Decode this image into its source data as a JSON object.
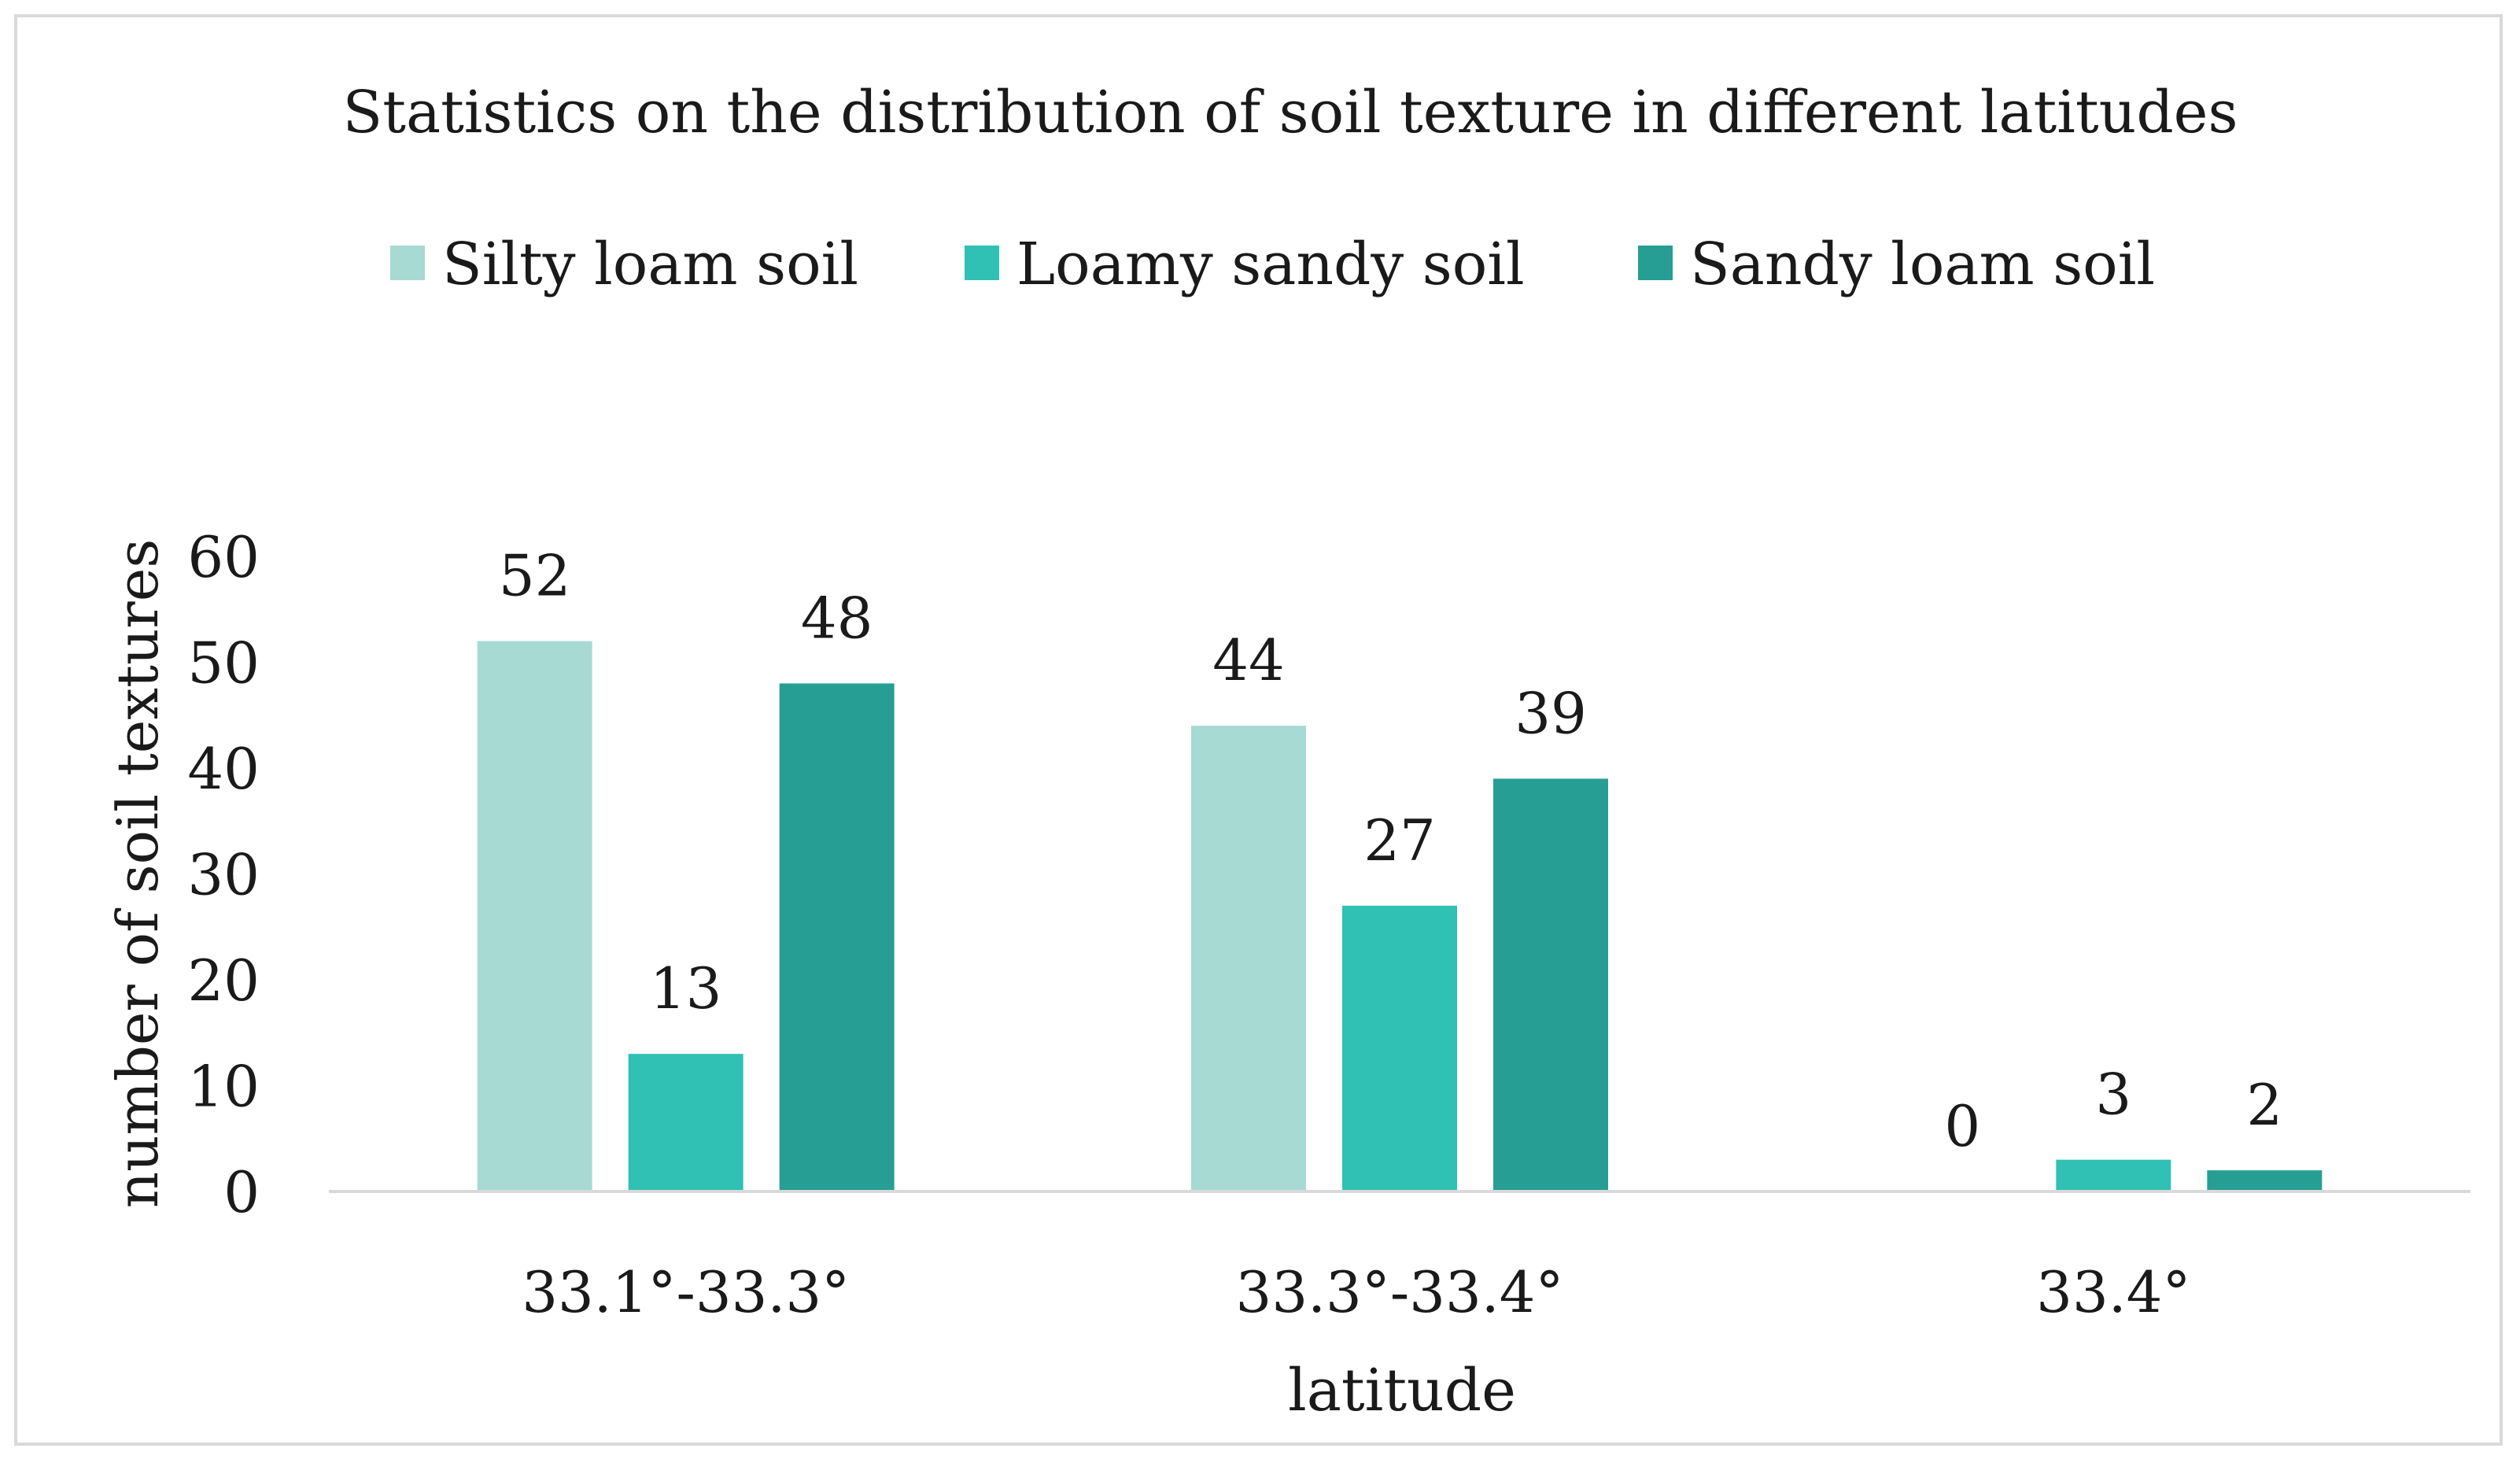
{
  "chart_data": {
    "type": "bar",
    "title": "Statistics on the distribution of soil texture in different latitudes",
    "xlabel": "latitude",
    "ylabel": "number of soil textures",
    "categories": [
      "33.1°-33.3°",
      "33.3°-33.4°",
      "33.4°"
    ],
    "series": [
      {
        "name": "Silty loam soil",
        "color": "#a6dad3",
        "values": [
          52,
          44,
          0
        ]
      },
      {
        "name": "Loamy sandy soil",
        "color": "#30c0b4",
        "values": [
          13,
          27,
          3
        ]
      },
      {
        "name": "Sandy loam soil",
        "color": "#279e94",
        "values": [
          48,
          39,
          2
        ]
      }
    ],
    "ylim": [
      0,
      60
    ],
    "yticks": [
      "0",
      "10",
      "20",
      "30",
      "40",
      "50",
      "60"
    ],
    "legend_position": "top-center",
    "grid": false,
    "data_labels": true
  }
}
